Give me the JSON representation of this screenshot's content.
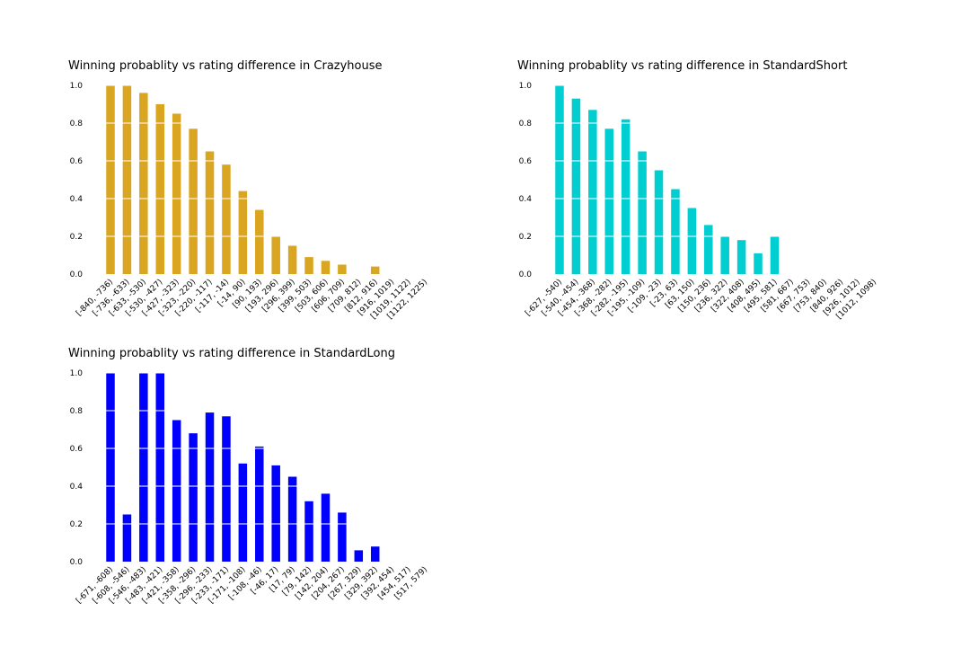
{
  "chart_data": [
    {
      "type": "bar",
      "title": "Winning probablity vs rating difference in Crazyhouse",
      "xlabel": "",
      "ylabel": "",
      "ylim": [
        0,
        1.0
      ],
      "yticks": [
        "0.0",
        "0.2",
        "0.4",
        "0.6",
        "0.8",
        "1.0"
      ],
      "grid": "horizontal white lines",
      "color": "#DAA520",
      "categories": [
        "[-840, -736)",
        "[-736, -633)",
        "[-633, -530)",
        "[-530, -427)",
        "[-427, -323)",
        "[-323, -220)",
        "[-220, -117)",
        "[-117, -14)",
        "[-14, 90)",
        "[90, 193)",
        "[193, 296)",
        "[296, 399)",
        "[399, 503)",
        "[503, 606)",
        "[606, 709)",
        "[709, 812)",
        "[812, 916)",
        "[916, 1019)",
        "[1019, 1122)",
        "[1122, 1225)"
      ],
      "values": [
        1.0,
        1.0,
        0.96,
        0.9,
        0.85,
        0.77,
        0.65,
        0.58,
        0.44,
        0.34,
        0.2,
        0.15,
        0.09,
        0.07,
        0.05,
        null,
        0.04,
        null,
        null,
        null
      ]
    },
    {
      "type": "bar",
      "title": "Winning probablity vs rating difference in StandardShort",
      "xlabel": "",
      "ylabel": "",
      "ylim": [
        0,
        1.0
      ],
      "yticks": [
        "0.0",
        "0.2",
        "0.4",
        "0.6",
        "0.8",
        "1.0"
      ],
      "grid": "horizontal white lines",
      "color": "#00CED1",
      "categories": [
        "[-627, -540)",
        "[-540, -454)",
        "[-454, -368)",
        "[-368, -282)",
        "[-282, -195)",
        "[-195, -109)",
        "[-109, -23)",
        "[-23, 63)",
        "[63, 150)",
        "[150, 236)",
        "[236, 322)",
        "[322, 408)",
        "[408, 495)",
        "[495, 581)",
        "[581, 667)",
        "[667, 753)",
        "[753, 840)",
        "[840, 926)",
        "[926, 1012)",
        "[1012, 1098)"
      ],
      "values": [
        1.0,
        0.93,
        0.87,
        0.77,
        0.82,
        0.65,
        0.55,
        0.45,
        0.35,
        0.26,
        0.2,
        0.18,
        0.11,
        0.2,
        null,
        null,
        null,
        null,
        null,
        null
      ]
    },
    {
      "type": "bar",
      "title": "Winning probablity vs rating difference in StandardLong",
      "xlabel": "",
      "ylabel": "",
      "ylim": [
        0,
        1.0
      ],
      "yticks": [
        "0.0",
        "0.2",
        "0.4",
        "0.6",
        "0.8",
        "1.0"
      ],
      "grid": "horizontal white lines",
      "color": "#0000FF",
      "categories": [
        "[-671, -608)",
        "[-608, -546)",
        "[-546, -483)",
        "[-483, -421)",
        "[-421, -358)",
        "[-358, -296)",
        "[-296, -233)",
        "[-233, -171)",
        "[-171, -108)",
        "[-108, -46)",
        "[-46, 17)",
        "[17, 79)",
        "[79, 142)",
        "[142, 204)",
        "[204, 267)",
        "[267, 329)",
        "[329, 392)",
        "[392, 454)",
        "[454, 517)",
        "[517, 579)"
      ],
      "values": [
        1.0,
        0.25,
        1.0,
        1.0,
        0.75,
        0.68,
        0.79,
        0.77,
        0.52,
        0.61,
        0.51,
        0.45,
        0.32,
        0.36,
        0.26,
        0.06,
        0.08,
        null,
        null,
        null
      ]
    }
  ]
}
